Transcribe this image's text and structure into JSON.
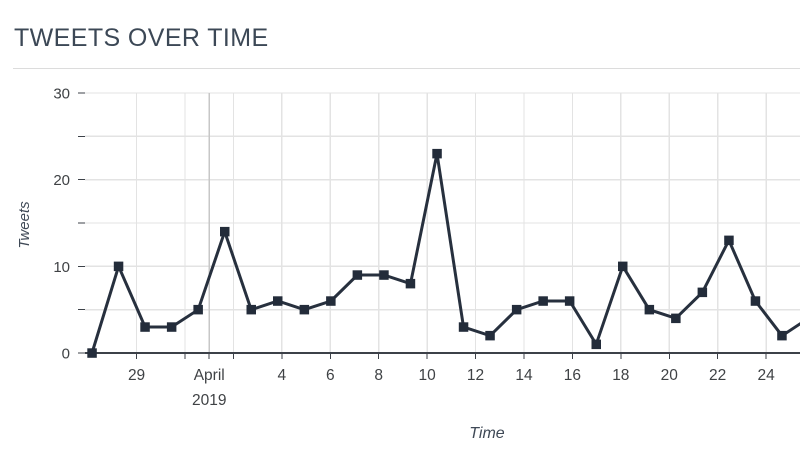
{
  "page": {
    "title": "TWEETS OVER TIME"
  },
  "colors": {
    "series_line": "#27303e",
    "marker_fill": "#232c3a",
    "gridline": "#e3e3e3",
    "gridline_month_boundary": "#c7c7c7",
    "axis_line": "#3c4148",
    "tick_label": "#3f4245",
    "title_text": "#3c4856",
    "axis_title_text": "#3f4956",
    "divider": "#dcdcdc"
  },
  "chart_data": {
    "type": "line",
    "title": "TWEETS OVER TIME",
    "xlabel": "Time",
    "ylabel": "Tweets",
    "ylim": [
      0,
      30
    ],
    "y_tick_labels": [
      "0",
      "10",
      "20",
      "30"
    ],
    "y_tick_values": [
      0,
      10,
      20,
      30
    ],
    "y_grid_step": 5,
    "grid": true,
    "legend": false,
    "marker": "square",
    "x_domain_days": [
      -2.13,
      27.4
    ],
    "x_ticks": [
      {
        "day": 0,
        "label": "29",
        "label2": "",
        "month_boundary": false
      },
      {
        "day": 2,
        "label": "",
        "label2": "",
        "month_boundary": false
      },
      {
        "day": 3,
        "label": "April",
        "label2": "2019",
        "month_boundary": true
      },
      {
        "day": 4,
        "label": "",
        "label2": "",
        "month_boundary": false
      },
      {
        "day": 6,
        "label": "4",
        "label2": "",
        "month_boundary": false
      },
      {
        "day": 8,
        "label": "6",
        "label2": "",
        "month_boundary": false
      },
      {
        "day": 10,
        "label": "8",
        "label2": "",
        "month_boundary": false
      },
      {
        "day": 12,
        "label": "10",
        "label2": "",
        "month_boundary": false
      },
      {
        "day": 14,
        "label": "12",
        "label2": "",
        "month_boundary": false
      },
      {
        "day": 16,
        "label": "14",
        "label2": "",
        "month_boundary": false
      },
      {
        "day": 18,
        "label": "16",
        "label2": "",
        "month_boundary": false
      },
      {
        "day": 20,
        "label": "18",
        "label2": "",
        "month_boundary": false
      },
      {
        "day": 22,
        "label": "20",
        "label2": "",
        "month_boundary": false
      },
      {
        "day": 24,
        "label": "22",
        "label2": "",
        "month_boundary": false
      },
      {
        "day": 26,
        "label": "24",
        "label2": "",
        "month_boundary": false
      }
    ],
    "series": [
      {
        "name": "Tweets",
        "day_start": -1.84,
        "day_step": 1.096,
        "values": [
          0,
          10,
          3,
          3,
          5,
          14,
          5,
          6,
          5,
          6,
          9,
          9,
          8,
          23,
          3,
          2,
          5,
          6,
          6,
          1,
          10,
          5,
          4,
          7,
          13,
          6,
          2,
          4
        ]
      }
    ]
  }
}
